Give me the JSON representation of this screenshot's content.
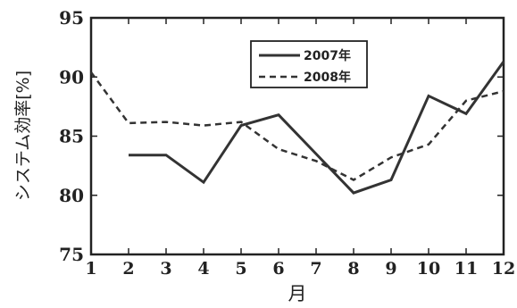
{
  "chart_data": {
    "type": "line",
    "title": "",
    "xlabel": "月",
    "ylabel": "システム効率[%]",
    "x": [
      1,
      2,
      3,
      4,
      5,
      6,
      7,
      8,
      9,
      10,
      11,
      12
    ],
    "xlim": [
      1,
      12
    ],
    "ylim": [
      75,
      95
    ],
    "yticks": [
      75,
      80,
      85,
      90,
      95
    ],
    "grid": false,
    "legend_position": "top-right",
    "series": [
      {
        "name": "2007年",
        "style": "solid",
        "color": "#333333",
        "values": [
          null,
          83.4,
          83.4,
          81.1,
          85.9,
          86.8,
          83.5,
          80.2,
          81.3,
          88.4,
          86.9,
          91.3
        ]
      },
      {
        "name": "2008年",
        "style": "dashed",
        "color": "#333333",
        "values": [
          90.4,
          86.1,
          86.2,
          85.9,
          86.2,
          83.9,
          82.9,
          81.3,
          83.2,
          84.3,
          88.0,
          88.8
        ]
      }
    ]
  }
}
